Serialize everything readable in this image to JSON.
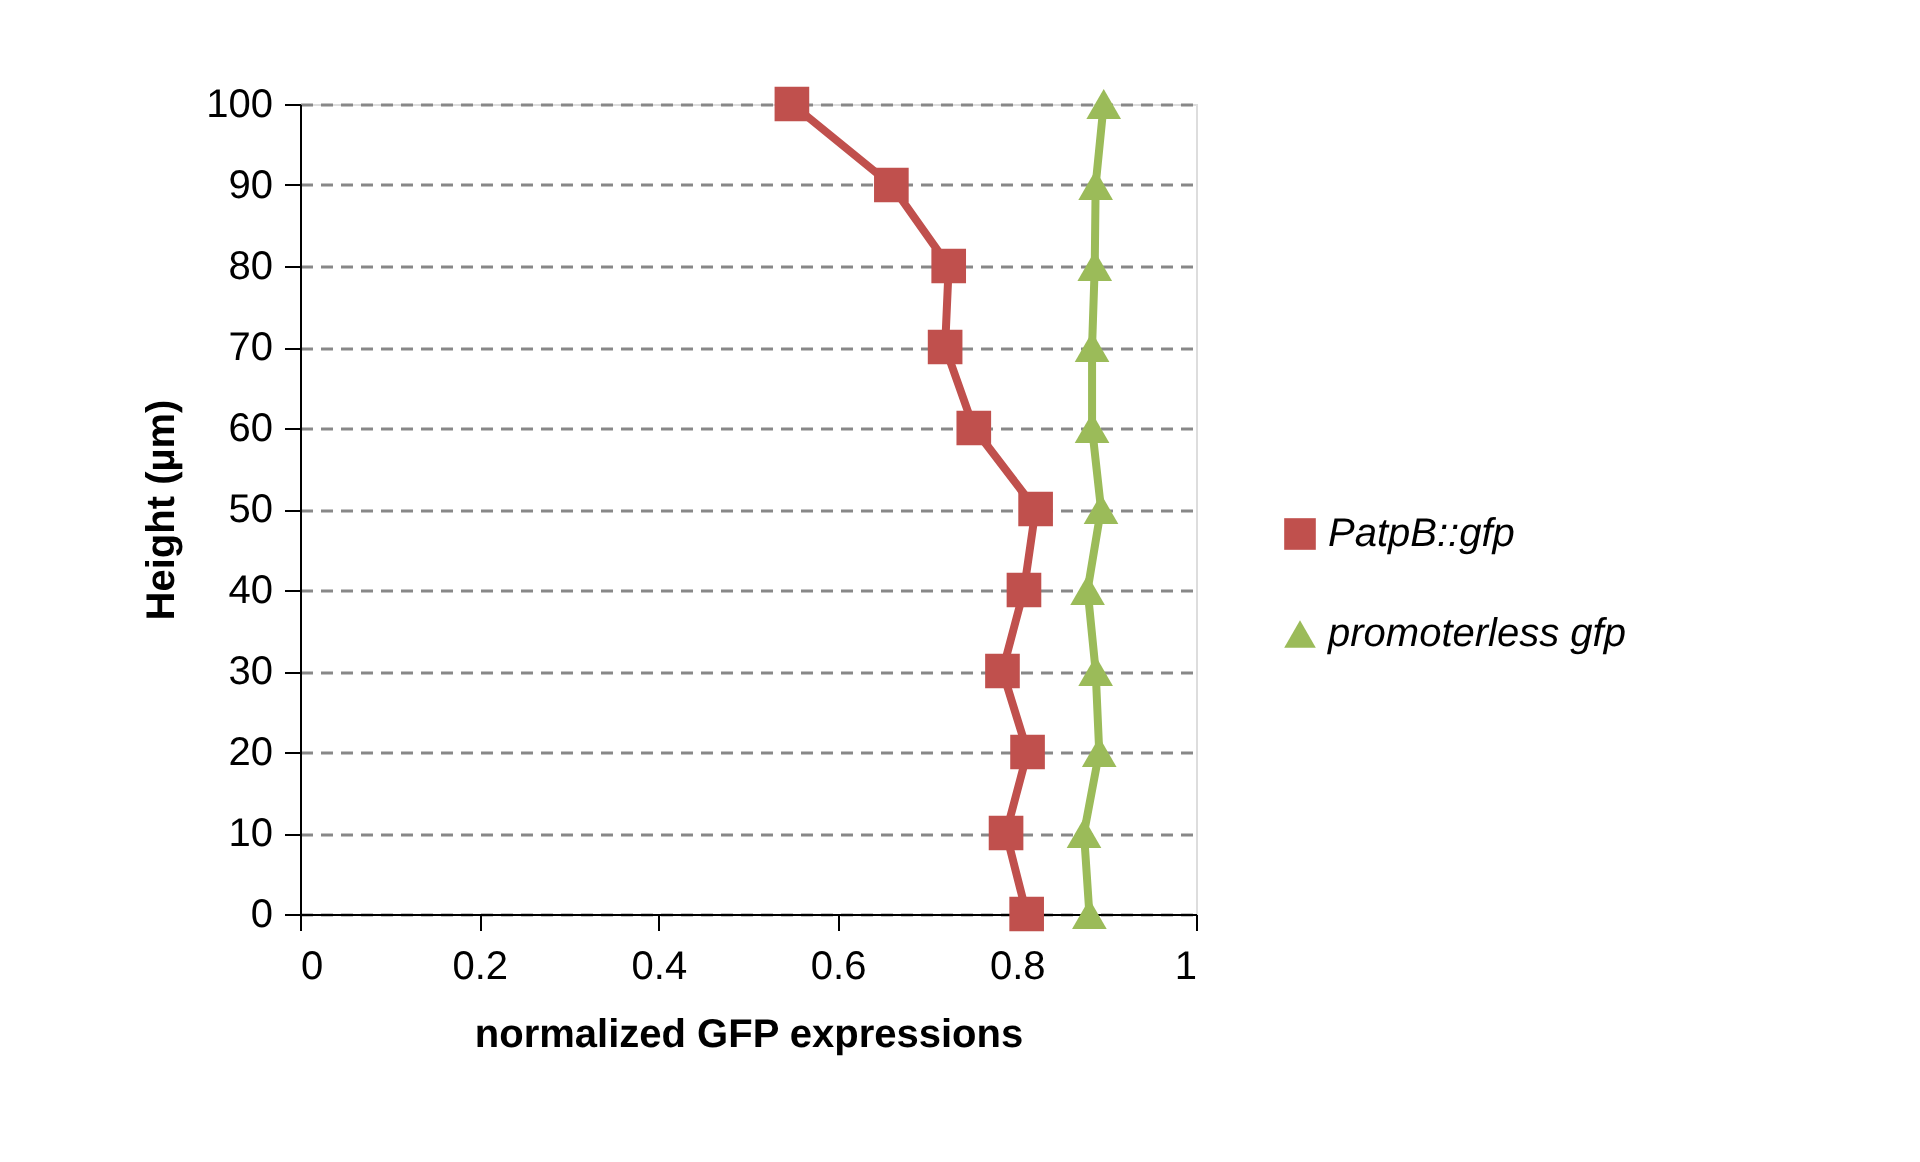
{
  "chart_data": {
    "type": "line",
    "xlabel": "normalized GFP expressions",
    "ylabel": "Height (µm)",
    "xlim": [
      0,
      1
    ],
    "xticks": [
      0,
      0.2,
      0.4,
      0.6,
      0.8,
      1
    ],
    "ylim": [
      0,
      100
    ],
    "yticks": [
      0,
      10,
      20,
      30,
      40,
      50,
      60,
      70,
      80,
      90,
      100
    ],
    "grid": "y",
    "legend": "right",
    "series": [
      {
        "name": "PatpB::gfp",
        "color": "#c0504d",
        "marker": "square",
        "x": [
          0.811,
          0.788,
          0.812,
          0.784,
          0.808,
          0.821,
          0.752,
          0.72,
          0.724,
          0.66,
          0.549
        ],
        "values": [
          0,
          10,
          20,
          30,
          40,
          50,
          60,
          70,
          80,
          90,
          100
        ]
      },
      {
        "name": "promoterless gfp",
        "color": "#9bbb59",
        "marker": "triangle",
        "x": [
          0.881,
          0.875,
          0.892,
          0.888,
          0.879,
          0.894,
          0.884,
          0.884,
          0.887,
          0.888,
          0.897
        ],
        "values": [
          0,
          10,
          20,
          30,
          40,
          50,
          60,
          70,
          80,
          90,
          100
        ]
      }
    ]
  }
}
